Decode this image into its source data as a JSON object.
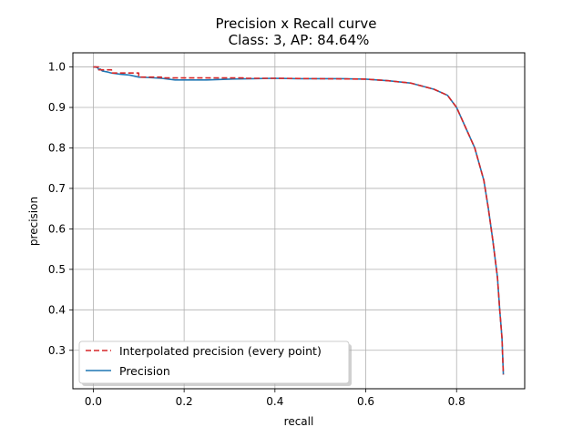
{
  "chart_data": {
    "type": "line",
    "title": "Precision x Recall curve",
    "subtitle": "Class: 3, AP: 84.64%",
    "xlabel": "recall",
    "ylabel": "precision",
    "xlim": [
      -0.045,
      0.95
    ],
    "ylim": [
      0.205,
      1.035
    ],
    "xticks": [
      0.0,
      0.2,
      0.4,
      0.6,
      0.8
    ],
    "xtick_labels": [
      "0.0",
      "0.2",
      "0.4",
      "0.6",
      "0.8"
    ],
    "yticks": [
      0.3,
      0.4,
      0.5,
      0.6,
      0.7,
      0.8,
      0.9,
      1.0
    ],
    "ytick_labels": [
      "0.3",
      "0.4",
      "0.5",
      "0.6",
      "0.7",
      "0.8",
      "0.9",
      "1.0"
    ],
    "grid": true,
    "legend_position": "lower-left",
    "series": [
      {
        "name": "Interpolated precision (every point)",
        "style": "dashed",
        "color": "#d62728",
        "x": [
          0.0,
          0.012,
          0.012,
          0.04,
          0.04,
          0.1,
          0.1,
          0.15,
          0.15,
          0.33,
          0.33,
          0.4,
          0.6,
          0.65,
          0.7,
          0.75,
          0.78,
          0.8,
          0.82,
          0.84,
          0.86,
          0.87,
          0.88,
          0.89,
          0.895,
          0.9,
          0.903
        ],
        "y": [
          1.0,
          1.0,
          0.993,
          0.993,
          0.985,
          0.985,
          0.975,
          0.975,
          0.973,
          0.973,
          0.972,
          0.972,
          0.97,
          0.966,
          0.96,
          0.945,
          0.93,
          0.9,
          0.85,
          0.8,
          0.72,
          0.65,
          0.57,
          0.48,
          0.4,
          0.33,
          0.24
        ]
      },
      {
        "name": "Precision",
        "style": "solid",
        "color": "#1f77b4",
        "x": [
          0.0,
          0.005,
          0.01,
          0.012,
          0.015,
          0.02,
          0.03,
          0.04,
          0.06,
          0.08,
          0.1,
          0.12,
          0.15,
          0.18,
          0.2,
          0.25,
          0.3,
          0.35,
          0.4,
          0.45,
          0.5,
          0.55,
          0.6,
          0.65,
          0.7,
          0.75,
          0.78,
          0.8,
          0.82,
          0.84,
          0.86,
          0.87,
          0.88,
          0.89,
          0.895,
          0.9,
          0.903
        ],
        "y": [
          1.0,
          1.0,
          0.998,
          0.993,
          0.995,
          0.99,
          0.988,
          0.985,
          0.982,
          0.98,
          0.975,
          0.974,
          0.972,
          0.968,
          0.968,
          0.968,
          0.97,
          0.971,
          0.972,
          0.971,
          0.971,
          0.971,
          0.97,
          0.966,
          0.96,
          0.945,
          0.93,
          0.9,
          0.85,
          0.8,
          0.72,
          0.65,
          0.57,
          0.48,
          0.4,
          0.33,
          0.24
        ]
      }
    ]
  }
}
